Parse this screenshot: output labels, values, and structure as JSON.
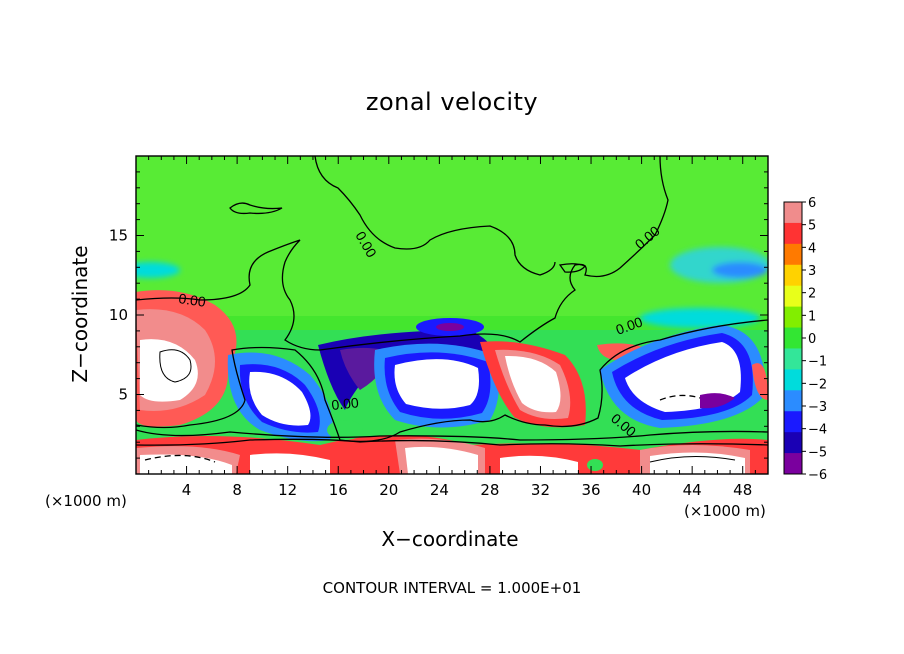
{
  "chart_data": {
    "type": "heatmap",
    "title": "zonal velocity",
    "xlabel": "X−coordinate",
    "ylabel": "Z−coordinate",
    "x_unit_left": "(×1000 m)",
    "x_unit_right": "(×1000 m)",
    "xlim": [
      0,
      50
    ],
    "ylim": [
      0,
      20
    ],
    "x_ticks": [
      4,
      8,
      12,
      16,
      20,
      24,
      28,
      32,
      36,
      40,
      44,
      48
    ],
    "y_ticks": [
      5,
      10,
      15
    ],
    "colorbar": {
      "ticks": [
        6,
        5,
        4,
        3,
        2,
        1,
        0,
        -1,
        -2,
        -3,
        -4,
        -5,
        -6
      ],
      "tick_labels": [
        "6",
        "5",
        "4",
        "3",
        "2",
        "1",
        "0",
        "−1",
        "−2",
        "−3",
        "−4",
        "−5",
        "−6"
      ],
      "colors": [
        "#f08c8c",
        "#ff3333",
        "#ff7a00",
        "#ffd200",
        "#e8ff1a",
        "#82ee00",
        "#33e633",
        "#33e699",
        "#00dcdc",
        "#2b8cff",
        "#1a1aff",
        "#1a00b4",
        "#7a009e"
      ]
    },
    "contour_labels": [
      "0.00",
      "0.00",
      "0.00",
      "0.00",
      "0.00",
      "0.00"
    ],
    "contour_interval": "CONTOUR INTERVAL = 1.000E+01",
    "features": [
      {
        "x": 4,
        "z": 7,
        "value": 7
      },
      {
        "x": 12,
        "z": 5.5,
        "value": -7
      },
      {
        "x": 19,
        "z": 7,
        "value": -5
      },
      {
        "x": 24,
        "z": 6,
        "value": -7
      },
      {
        "x": 25,
        "z": 9.3,
        "value": -5
      },
      {
        "x": 31,
        "z": 6.5,
        "value": 6
      },
      {
        "x": 43,
        "z": 6,
        "value": -7
      },
      {
        "x": 39,
        "z": 7.5,
        "value": 5
      },
      {
        "x": 45,
        "z": 12.5,
        "value": -3
      },
      {
        "x": 5,
        "z": 1,
        "value": 7
      },
      {
        "x": 14,
        "z": 1.5,
        "value": 5
      },
      {
        "x": 23,
        "z": 1.5,
        "value": 6
      },
      {
        "x": 33,
        "z": 1,
        "value": 7
      },
      {
        "x": 44,
        "z": 1,
        "value": 7
      }
    ]
  }
}
